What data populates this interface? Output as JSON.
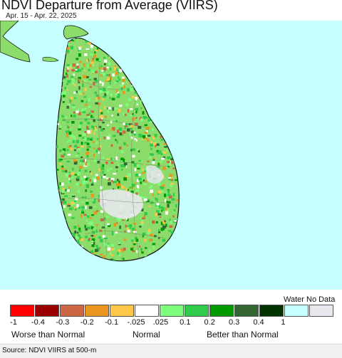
{
  "title": "NDVI Departure from Average (VIIRS)",
  "subtitle": "Apr. 15 - Apr. 22, 2025",
  "colors": {
    "ocean": "#c6ffff",
    "land": "#8bdc6a",
    "no_data": "#e8e8ee",
    "coast": "#111111"
  },
  "legend": {
    "water_label": "Water",
    "no_data_label": "No Data",
    "swatches": [
      {
        "value_range": "< -0.4",
        "color": "#ff0000"
      },
      {
        "value_range": "-0.4 to -0.3",
        "color": "#990000"
      },
      {
        "value_range": "-0.3 to -0.2",
        "color": "#cc6644"
      },
      {
        "value_range": "-0.2 to -0.1",
        "color": "#e8961e"
      },
      {
        "value_range": "-0.1 to -0.025",
        "color": "#ffc84a"
      },
      {
        "value_range": "-0.025 to 0.025",
        "color": "#ffffff"
      },
      {
        "value_range": "0.025 to 0.1",
        "color": "#7dff7d"
      },
      {
        "value_range": "0.1 to 0.2",
        "color": "#2ecc4a"
      },
      {
        "value_range": "0.2 to 0.3",
        "color": "#009900"
      },
      {
        "value_range": "0.3 to 0.4",
        "color": "#336633"
      },
      {
        "value_range": "> 0.4",
        "color": "#003300"
      },
      {
        "value_range": "Water",
        "color": "#c6ffff"
      },
      {
        "value_range": "No Data",
        "color": "#e8e8ee"
      }
    ],
    "ticks": [
      "-1",
      "-0.4",
      "-0.3",
      "-0.2",
      "-0.1",
      "-.025",
      ".025",
      "0.1",
      "0.2",
      "0.3",
      "0.4",
      "1"
    ],
    "captions": {
      "worse": "Worse than Normal",
      "normal": "Normal",
      "better": "Better than Normal"
    }
  },
  "source": "Source: NDVI VIIRS at 500-m"
}
